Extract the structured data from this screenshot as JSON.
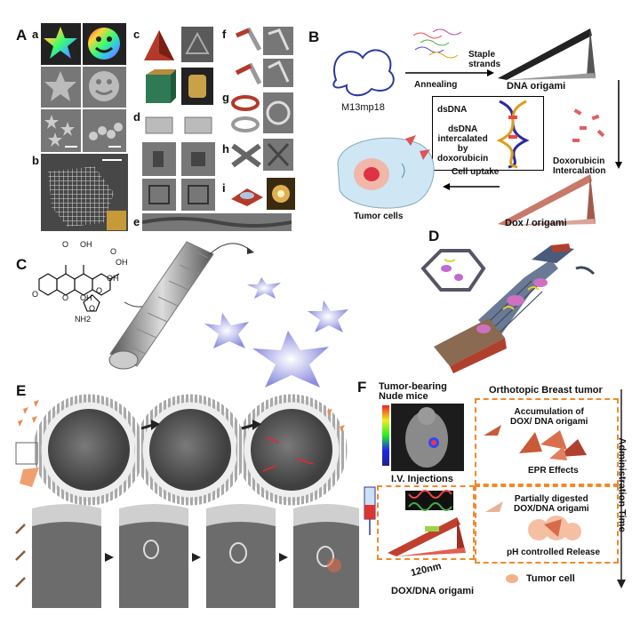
{
  "panels": {
    "A": {
      "letter": "A",
      "sub": [
        "a",
        "b",
        "c",
        "d",
        "e",
        "f",
        "g",
        "h",
        "i"
      ]
    },
    "B": {
      "letter": "B",
      "scaffold": "M13mp18",
      "staple": "Staple\nstrands",
      "annealing": "Annealing",
      "origami": "DNA origami",
      "dsdna": "dsDNA",
      "intercalated": "dsDNA\nintercalated\nby\ndoxorubicin",
      "intercalation": "Doxorubicin\nIntercalation",
      "dox_origami": "Dox / origami",
      "uptake": "Cell uptake",
      "tumor_cells": "Tumor cells"
    },
    "C": {
      "letter": "C",
      "chem": [
        "O",
        "OH",
        "O",
        "OH",
        "OH",
        "O",
        "O",
        "OH",
        "O",
        "O",
        "NH2"
      ]
    },
    "D": {
      "letter": "D"
    },
    "E": {
      "letter": "E"
    },
    "F": {
      "letter": "F",
      "mice": "Tumor-bearing\nNude mice",
      "tumor": "Orthotopic Breast tumor",
      "accum": "Accumulation of\nDOX/ DNA origami",
      "epr": "EPR Effects",
      "digested": "Partially digested\nDOX/DNA origami",
      "ph": "pH controlled Release",
      "tumor_cell": "Tumor cell",
      "iv": "I.V. Injections",
      "size": "120nm",
      "dox_dna": "DOX/DNA origami",
      "admin": "Administration Time"
    }
  },
  "colors": {
    "orange": "#f08a2b",
    "dna_pink": "#e8a0a0",
    "membrane": "#b9b9b9",
    "cell": "#5c5c5c"
  }
}
